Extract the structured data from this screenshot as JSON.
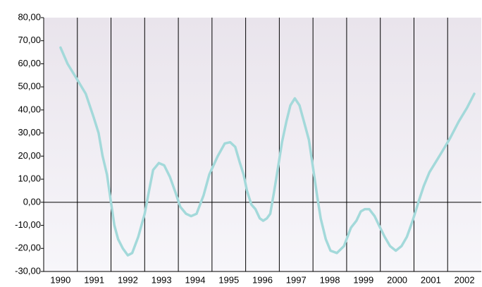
{
  "chart_data": {
    "type": "line",
    "x": [
      1990.0,
      1990.21,
      1990.46,
      1990.75,
      1990.98,
      1991.13,
      1991.25,
      1991.38,
      1991.5,
      1991.6,
      1991.71,
      1991.85,
      1992.0,
      1992.13,
      1992.31,
      1992.5,
      1992.63,
      1992.75,
      1992.92,
      1993.08,
      1993.25,
      1993.42,
      1993.56,
      1993.73,
      1993.88,
      1994.04,
      1994.25,
      1994.42,
      1994.67,
      1994.88,
      1995.04,
      1995.19,
      1995.33,
      1995.44,
      1995.54,
      1995.67,
      1995.79,
      1995.92,
      1996.02,
      1996.13,
      1996.23,
      1996.35,
      1996.46,
      1996.58,
      1996.71,
      1996.83,
      1996.96,
      1997.1,
      1997.23,
      1997.38,
      1997.5,
      1997.63,
      1997.73,
      1997.88,
      1998.02,
      1998.21,
      1998.42,
      1998.63,
      1998.79,
      1998.92,
      1999.04,
      1999.17,
      1999.33,
      1999.46,
      1999.63,
      1999.79,
      1999.96,
      2000.13,
      2000.29,
      2000.46,
      2000.63,
      2000.79,
      2000.96,
      2001.17,
      2001.38,
      2001.58,
      2001.83,
      2002.08,
      2002.29
    ],
    "series": [
      {
        "color": "#a3d9da",
        "values": [
          67,
          60,
          54,
          47,
          37,
          30,
          20,
          12,
          0,
          -10,
          -16,
          -20,
          -23,
          -22,
          -15,
          -5,
          5,
          14,
          17,
          16,
          11,
          4,
          -2,
          -5,
          -6,
          -5,
          3,
          12,
          20,
          25.5,
          26,
          24,
          17,
          12,
          5,
          -1,
          -3,
          -7,
          -8,
          -7,
          -5,
          5,
          15,
          26,
          35,
          42,
          45,
          42,
          35,
          27,
          15,
          2,
          -7,
          -16,
          -21,
          -22,
          -19,
          -11,
          -8,
          -4,
          -3,
          -3,
          -6,
          -10,
          -15,
          -19,
          -21,
          -19,
          -15,
          -8,
          0,
          7,
          13,
          18,
          23,
          28,
          35,
          41,
          47
        ]
      }
    ],
    "xlim": [
      1989.5,
      2002.5
    ],
    "xticks": [
      1990,
      1991,
      1992,
      1993,
      1994,
      1995,
      1996,
      1997,
      1998,
      1999,
      2000,
      2001,
      2002
    ],
    "ylim": [
      -30,
      80
    ],
    "yticks": [
      {
        "value": -30,
        "label": "-30,00"
      },
      {
        "value": -20,
        "label": "-20,00"
      },
      {
        "value": -10,
        "label": "-10,00"
      },
      {
        "value": 0,
        "label": "0,00"
      },
      {
        "value": 10,
        "label": "10,00"
      },
      {
        "value": 20,
        "label": "20,00"
      },
      {
        "value": 30,
        "label": "30,00"
      },
      {
        "value": 40,
        "label": "40,00"
      },
      {
        "value": 50,
        "label": "50,00"
      },
      {
        "value": 60,
        "label": "60,00"
      },
      {
        "value": 70,
        "label": "70,00"
      },
      {
        "value": 80,
        "label": "80,00"
      }
    ]
  }
}
